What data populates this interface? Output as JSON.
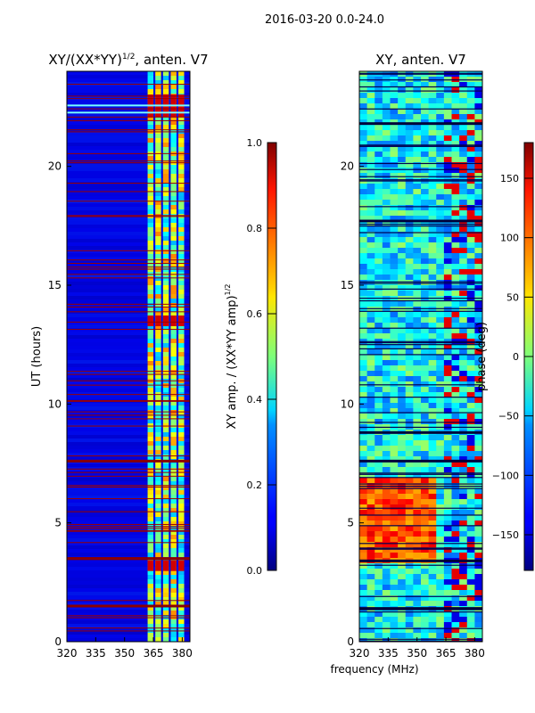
{
  "figure": {
    "suptitle": "2016-03-20 0.0-24.0",
    "xlabel": "frequency (MHz)"
  },
  "chart_data": [
    {
      "type": "heatmap",
      "title_main": "XY/(XX*YY)",
      "title_sup": "1/2",
      "title_tail": ", anten. V7",
      "ylabel": "UT (hours)",
      "xlim": [
        320,
        384
      ],
      "ylim": [
        0,
        24
      ],
      "xticks": [
        320,
        335,
        350,
        365,
        380
      ],
      "xtick_labels": [
        "320",
        "335",
        "350",
        "365",
        "380"
      ],
      "yticks": [
        0,
        5,
        10,
        15,
        20
      ],
      "ytick_labels": [
        "0",
        "5",
        "10",
        "15",
        "20"
      ],
      "colorbar": {
        "label_main": "XY amp. / (XX*YY amp)",
        "label_sup": "1/2",
        "range": [
          0.0,
          1.0
        ],
        "ticks": [
          0.0,
          0.2,
          0.4,
          0.6,
          0.8,
          1.0
        ],
        "tick_labels": [
          "0.0",
          "0.2",
          "0.4",
          "0.6",
          "0.8",
          "1.0"
        ]
      }
    },
    {
      "type": "heatmap",
      "title_main": "XY, anten. V7",
      "title_sup": "",
      "title_tail": "",
      "ylabel": "",
      "xlim": [
        320,
        384
      ],
      "ylim": [
        0,
        24
      ],
      "xticks": [
        320,
        335,
        350,
        365,
        380
      ],
      "xtick_labels": [
        "320",
        "335",
        "350",
        "365",
        "380"
      ],
      "yticks": [
        0,
        5,
        10,
        15,
        20
      ],
      "ytick_labels": [
        "0",
        "5",
        "10",
        "15",
        "20"
      ],
      "colorbar": {
        "label_main": "phase (deg)",
        "label_sup": "",
        "range": [
          -180,
          180
        ],
        "ticks": [
          -150,
          -100,
          -50,
          0,
          50,
          100,
          150
        ],
        "tick_labels": [
          "−150",
          "−100",
          "−50",
          "0",
          "50",
          "100",
          "150"
        ]
      }
    }
  ]
}
